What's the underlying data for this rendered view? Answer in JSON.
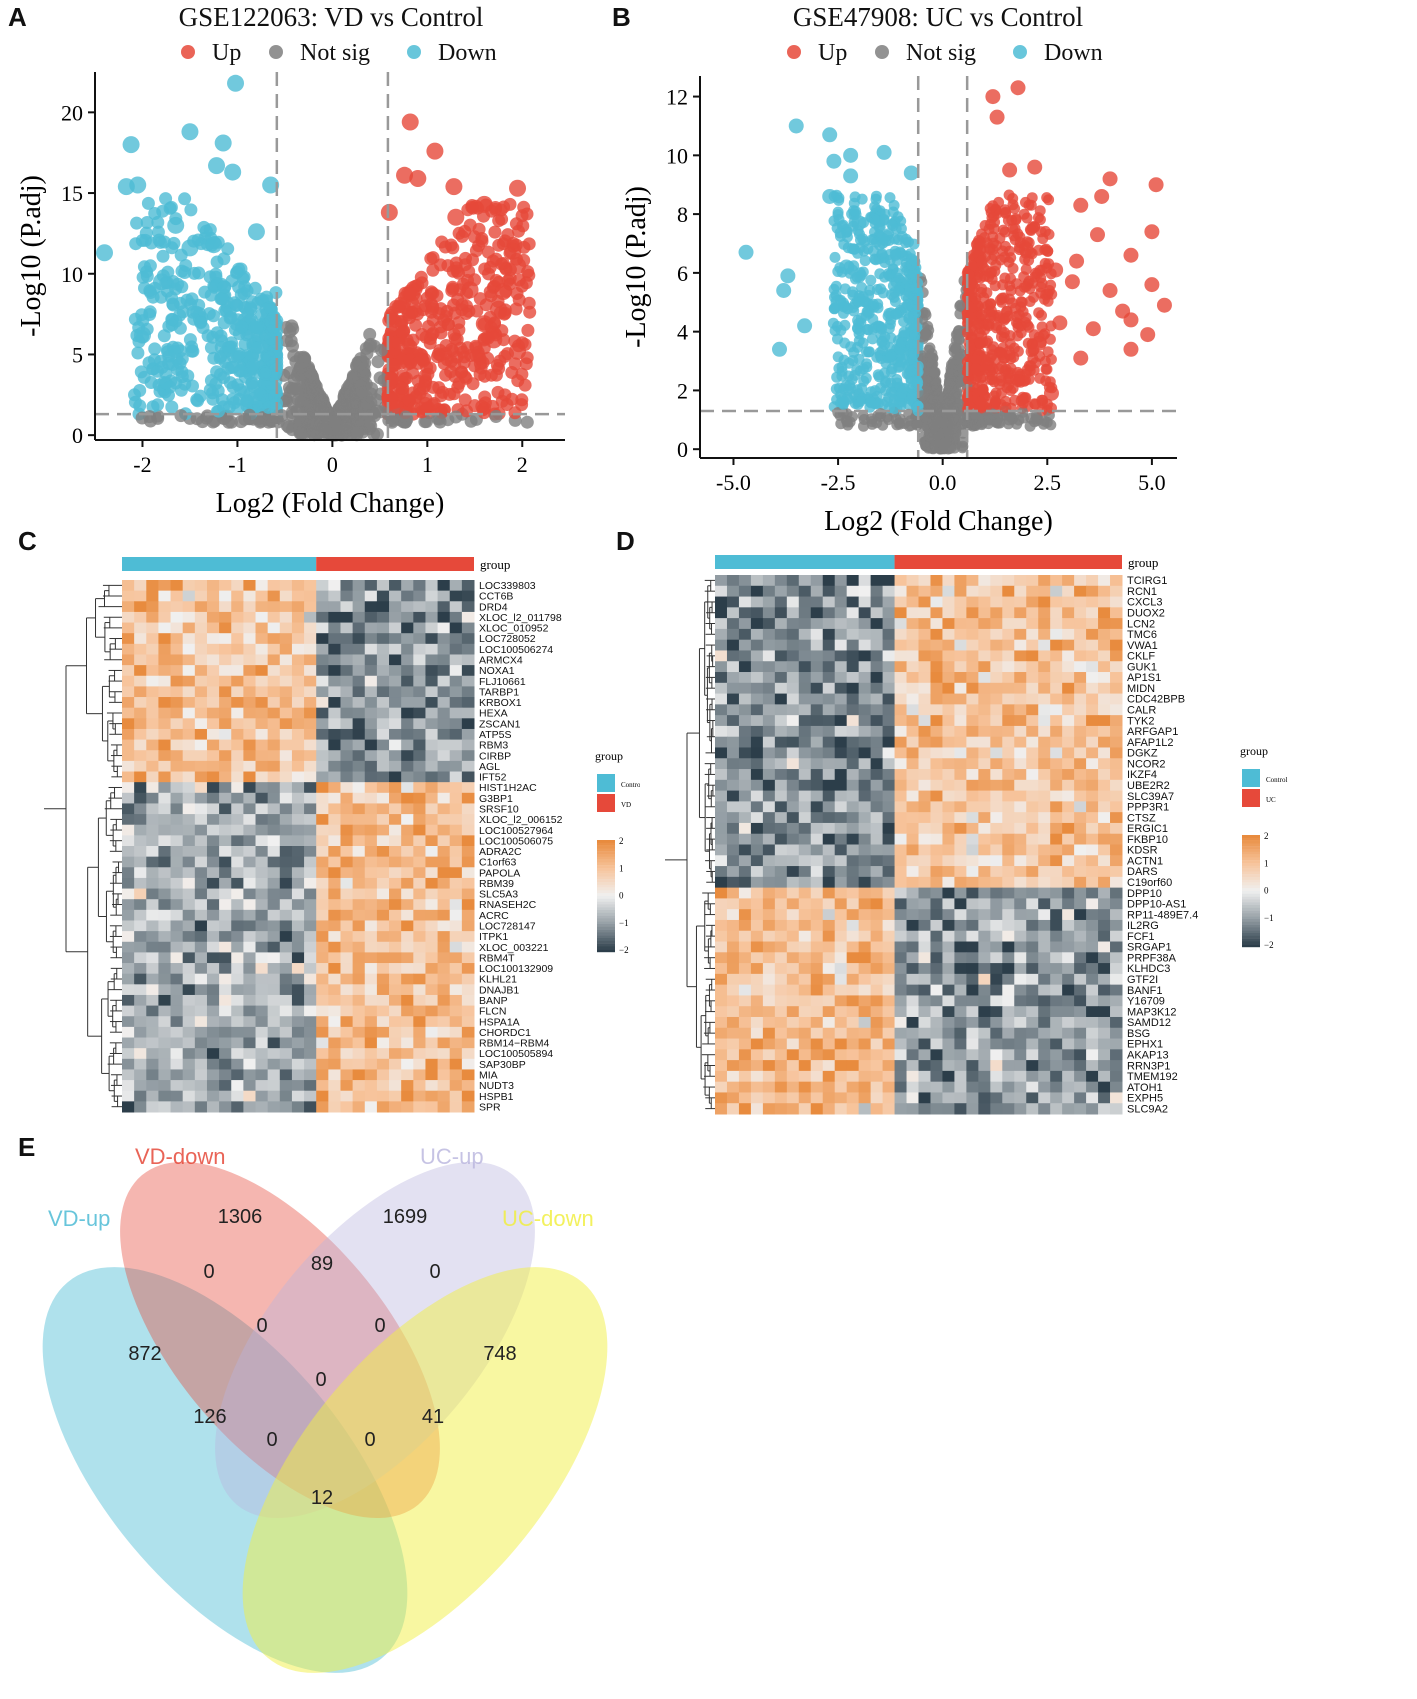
{
  "panels": {
    "a": "A",
    "b": "B",
    "c": "C",
    "d": "D",
    "e": "E"
  },
  "chart_data": [
    {
      "id": "A",
      "type": "scatter",
      "title": "GSE122063: VD vs Control",
      "xlabel": "Log2 (Fold Change)",
      "ylabel": "-Log10 (P.adj)",
      "xlim": [
        -2.5,
        2.45
      ],
      "ylim": [
        -0.3,
        22.5
      ],
      "xticks": [
        -2,
        -1,
        0,
        1,
        2
      ],
      "yticks": [
        0,
        5,
        10,
        15,
        20
      ],
      "fc_cutoff": 0.585,
      "p_cutoff": 1.3,
      "legend": [
        {
          "label": "Up",
          "color": "#e6493a"
        },
        {
          "label": "Not sig",
          "color": "#7f7f7f"
        },
        {
          "label": "Down",
          "color": "#4ebcd5"
        }
      ],
      "highlight_points": [
        [
          -1.02,
          21.8
        ],
        [
          -2.12,
          18.0
        ],
        [
          -1.5,
          18.8
        ],
        [
          -1.15,
          18.1
        ],
        [
          -1.22,
          16.7
        ],
        [
          -1.05,
          16.3
        ],
        [
          -2.05,
          15.5
        ],
        [
          -2.17,
          15.4
        ],
        [
          -0.65,
          15.5
        ],
        [
          -1.65,
          13.0
        ],
        [
          -2.4,
          11.3
        ],
        [
          -0.8,
          12.6
        ],
        [
          -1.25,
          11.8
        ],
        [
          -1.5,
          11.6
        ],
        [
          -1.8,
          9.5
        ],
        [
          -2.0,
          6.2
        ],
        [
          0.82,
          19.4
        ],
        [
          1.08,
          17.6
        ],
        [
          0.76,
          16.1
        ],
        [
          0.9,
          15.9
        ],
        [
          1.28,
          15.4
        ],
        [
          1.95,
          15.3
        ],
        [
          1.6,
          14.3
        ],
        [
          0.6,
          13.8
        ],
        [
          1.3,
          13.5
        ],
        [
          1.9,
          11.4
        ],
        [
          1.95,
          10.5
        ],
        [
          1.8,
          8.9
        ],
        [
          1.75,
          7.8
        ],
        [
          1.95,
          5.2
        ],
        [
          1.7,
          5.9
        ],
        [
          1.45,
          9.0
        ],
        [
          1.6,
          6.9
        ]
      ]
    },
    {
      "id": "B",
      "type": "scatter",
      "title": "GSE47908: UC vs Control",
      "xlabel": "Log2 (Fold Change)",
      "ylabel": "-Log10 (P.adj)",
      "xlim": [
        -5.8,
        5.6
      ],
      "ylim": [
        -0.3,
        12.7
      ],
      "xticks": [
        -5.0,
        -2.5,
        0.0,
        2.5,
        5.0
      ],
      "yticks": [
        0,
        2,
        4,
        6,
        8,
        10,
        12
      ],
      "fc_cutoff": 0.585,
      "p_cutoff": 1.3,
      "legend": [
        {
          "label": "Up",
          "color": "#e6493a"
        },
        {
          "label": "Not sig",
          "color": "#7f7f7f"
        },
        {
          "label": "Down",
          "color": "#4ebcd5"
        }
      ],
      "highlight_points": [
        [
          -3.5,
          11.0
        ],
        [
          -2.7,
          10.7
        ],
        [
          -2.2,
          10.0
        ],
        [
          -2.6,
          9.8
        ],
        [
          -2.2,
          9.3
        ],
        [
          -2.7,
          8.6
        ],
        [
          -4.7,
          6.7
        ],
        [
          -3.7,
          5.9
        ],
        [
          -3.8,
          5.4
        ],
        [
          -3.3,
          4.2
        ],
        [
          -3.9,
          3.4
        ],
        [
          -2.5,
          5.0
        ],
        [
          -2.3,
          6.2
        ],
        [
          -2.0,
          7.7
        ],
        [
          -1.4,
          10.1
        ],
        [
          -0.75,
          9.4
        ],
        [
          1.2,
          12.0
        ],
        [
          1.8,
          12.3
        ],
        [
          1.3,
          11.3
        ],
        [
          1.6,
          9.5
        ],
        [
          2.2,
          9.6
        ],
        [
          4.0,
          9.2
        ],
        [
          3.8,
          8.6
        ],
        [
          3.3,
          8.3
        ],
        [
          5.1,
          9.0
        ],
        [
          5.0,
          7.4
        ],
        [
          3.7,
          7.3
        ],
        [
          4.5,
          6.6
        ],
        [
          5.0,
          5.6
        ],
        [
          5.3,
          4.9
        ],
        [
          4.3,
          4.7
        ],
        [
          4.0,
          5.4
        ],
        [
          4.5,
          4.4
        ],
        [
          4.9,
          3.9
        ],
        [
          4.5,
          3.4
        ],
        [
          3.3,
          3.1
        ],
        [
          3.6,
          4.1
        ],
        [
          2.6,
          1.9
        ],
        [
          2.0,
          6.8
        ],
        [
          2.7,
          6.1
        ],
        [
          3.1,
          5.7
        ],
        [
          3.2,
          6.4
        ],
        [
          2.8,
          4.3
        ],
        [
          2.3,
          3.6
        ]
      ]
    },
    {
      "id": "C",
      "type": "heatmap",
      "annotation_title": "group",
      "legend_title": "group",
      "groups": [
        {
          "label": "Control",
          "color": "#4ebcd5"
        },
        {
          "label": "VD",
          "color": "#e6493a"
        }
      ],
      "scale_ticks": [
        "2",
        "1",
        "0",
        "−1",
        "−2"
      ],
      "n_control": 16,
      "n_case": 13,
      "n_up_top": 19,
      "genes": [
        "LOC339803",
        "CCT6B",
        "DRD4",
        "XLOC_l2_011798",
        "XLOC_010952",
        "LOC728052",
        "LOC100506274",
        "ARMCX4",
        "NOXA1",
        "FLJ10661",
        "TARBP1",
        "KRBOX1",
        "HEXA",
        "ZSCAN1",
        "ATP5S",
        "RBM3",
        "CIRBP",
        "AGL",
        "IFT52",
        "HIST1H2AC",
        "G3BP1",
        "SRSF10",
        "XLOC_l2_006152",
        "LOC100527964",
        "LOC100506075",
        "ADRA2C",
        "C1orf63",
        "PAPOLA",
        "RBM39",
        "SLC5A3",
        "RNASEH2C",
        "ACRC",
        "LOC728147",
        "ITPK1",
        "XLOC_003221",
        "RBM4T",
        "LOC100132909",
        "KLHL21",
        "DNAJB1",
        "BANP",
        "FLCN",
        "HSPA1A",
        "CHORDC1",
        "RBM14−RBM4",
        "LOC100505894",
        "SAP30BP",
        "MIA",
        "NUDT3",
        "HSPB1",
        "SPR"
      ]
    },
    {
      "id": "D",
      "type": "heatmap",
      "annotation_title": "group",
      "legend_title": "group",
      "groups": [
        {
          "label": "Control",
          "color": "#4ebcd5"
        },
        {
          "label": "UC",
          "color": "#e6493a"
        }
      ],
      "scale_ticks": [
        "2",
        "1",
        "0",
        "−1",
        "−2"
      ],
      "n_control": 15,
      "n_case": 19,
      "n_up_top": 29,
      "genes": [
        "TCIRG1",
        "RCN1",
        "CXCL3",
        "DUOX2",
        "LCN2",
        "TMC6",
        "VWA1",
        "CKLF",
        "GUK1",
        "AP1S1",
        "MIDN",
        "CDC42BPB",
        "CALR",
        "TYK2",
        "ARFGAP1",
        "AFAP1L2",
        "DGKZ",
        "NCOR2",
        "IKZF4",
        "UBE2R2",
        "SLC39A7",
        "PPP3R1",
        "CTSZ",
        "ERGIC1",
        "FKBP10",
        "KDSR",
        "ACTN1",
        "DARS",
        "C19orf60",
        "DPP10",
        "DPP10-AS1",
        "RP11-489E7.4",
        "IL2RG",
        "FCF1",
        "SRGAP1",
        "PRPF38A",
        "KLHDC3",
        "GTF2I",
        "BANF1",
        "Y16709",
        "MAP3K12",
        "SAMD12",
        "BSG",
        "EPHX1",
        "AKAP13",
        "RRN3P1",
        "TMEM192",
        "ATOH1",
        "EXPH5",
        "SLC9A2"
      ]
    },
    {
      "id": "E",
      "type": "venn",
      "sets": [
        {
          "name": "VD-up",
          "color": "#4ebcd5"
        },
        {
          "name": "VD-down",
          "color": "#e6493a"
        },
        {
          "name": "UC-up",
          "color": "#b9b5de"
        },
        {
          "name": "UC-down",
          "color": "#f1ef43"
        }
      ],
      "regions": [
        {
          "sets": [
            "VD-down"
          ],
          "count": "1306"
        },
        {
          "sets": [
            "UC-up"
          ],
          "count": "1699"
        },
        {
          "sets": [
            "VD-up",
            "VD-down"
          ],
          "count": "0"
        },
        {
          "sets": [
            "VD-down",
            "UC-up"
          ],
          "count": "89"
        },
        {
          "sets": [
            "UC-up",
            "UC-down"
          ],
          "count": "0"
        },
        {
          "sets": [
            "VD-up",
            "VD-down",
            "UC-up"
          ],
          "count": "0"
        },
        {
          "sets": [
            "VD-down",
            "UC-up",
            "UC-down"
          ],
          "count": "0"
        },
        {
          "sets": [
            "VD-up"
          ],
          "count": "872"
        },
        {
          "sets": [
            "UC-down"
          ],
          "count": "748"
        },
        {
          "sets": [
            "VD-up",
            "VD-down",
            "UC-up",
            "UC-down"
          ],
          "count": "0"
        },
        {
          "sets": [
            "VD-up",
            "UC-up"
          ],
          "count": "126"
        },
        {
          "sets": [
            "VD-down",
            "UC-down"
          ],
          "count": "41"
        },
        {
          "sets": [
            "VD-up",
            "UC-up",
            "UC-down"
          ],
          "count": "0"
        },
        {
          "sets": [
            "VD-up",
            "VD-down",
            "UC-down"
          ],
          "count": "0"
        },
        {
          "sets": [
            "VD-up",
            "UC-down"
          ],
          "count": "12"
        }
      ]
    }
  ]
}
